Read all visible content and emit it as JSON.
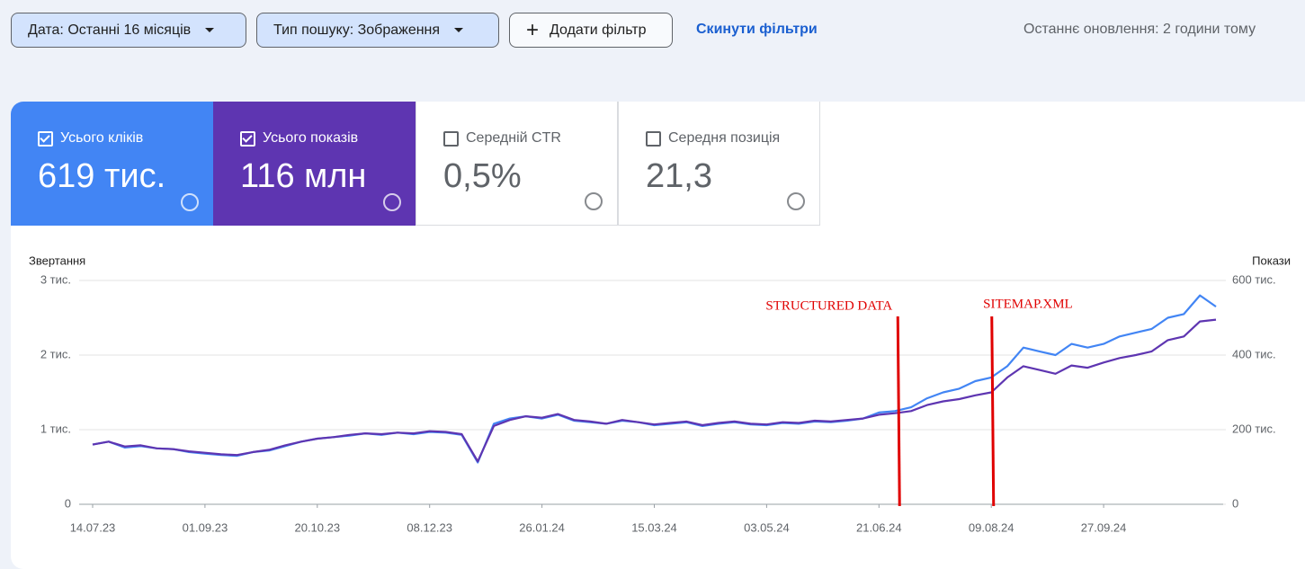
{
  "header": {
    "filters": [
      "Дата: Останні 16 місяців",
      "Тип пошуку: Зображення"
    ],
    "add_filter": "Додати фільтр",
    "reset": "Скинути фільтри",
    "last_update": "Останнє оновлення: 2 години тому"
  },
  "metrics": [
    {
      "label": "Усього кліків",
      "value": "619 тис.",
      "checked": true,
      "color": "#4285f4"
    },
    {
      "label": "Усього показів",
      "value": "116 млн",
      "checked": true,
      "color": "#5e35b1"
    },
    {
      "label": "Середній CTR",
      "value": "0,5%",
      "checked": false
    },
    {
      "label": "Середня позиція",
      "value": "21,3",
      "checked": false
    }
  ],
  "chart_data": {
    "type": "line",
    "y_label": "Звертання",
    "y2_label": "Покази",
    "x": [
      "14.07.23",
      "21.07.23",
      "28.07.23",
      "04.08.23",
      "11.08.23",
      "18.08.23",
      "25.08.23",
      "01.09.23",
      "08.09.23",
      "15.09.23",
      "22.09.23",
      "29.09.23",
      "06.10.23",
      "13.10.23",
      "20.10.23",
      "27.10.23",
      "03.11.23",
      "10.11.23",
      "17.11.23",
      "24.11.23",
      "01.12.23",
      "08.12.23",
      "15.12.23",
      "22.12.23",
      "29.12.23",
      "05.01.24",
      "12.01.24",
      "19.01.24",
      "26.01.24",
      "02.02.24",
      "09.02.24",
      "16.02.24",
      "23.02.24",
      "01.03.24",
      "08.03.24",
      "15.03.24",
      "22.03.24",
      "29.03.24",
      "05.04.24",
      "12.04.24",
      "19.04.24",
      "26.04.24",
      "03.05.24",
      "10.05.24",
      "17.05.24",
      "24.05.24",
      "31.05.24",
      "07.06.24",
      "14.06.24",
      "21.06.24",
      "28.06.24",
      "05.07.24",
      "12.07.24",
      "19.07.24",
      "26.07.24",
      "02.08.24",
      "09.08.24",
      "16.08.24",
      "23.08.24",
      "30.08.24",
      "06.09.24",
      "13.09.24",
      "20.09.24",
      "27.09.24",
      "04.10.24",
      "11.10.24",
      "18.10.24",
      "25.10.24",
      "01.11.24",
      "08.11.24",
      "15.11.24"
    ],
    "series": [
      {
        "name": "Усього кліків",
        "color": "#4285f4",
        "axis": "y",
        "values": [
          800,
          840,
          760,
          780,
          750,
          740,
          700,
          680,
          660,
          650,
          700,
          720,
          780,
          840,
          880,
          900,
          920,
          950,
          930,
          960,
          940,
          970,
          960,
          930,
          560,
          1080,
          1150,
          1180,
          1150,
          1200,
          1120,
          1100,
          1080,
          1120,
          1100,
          1060,
          1080,
          1100,
          1050,
          1080,
          1100,
          1070,
          1060,
          1090,
          1080,
          1110,
          1100,
          1120,
          1150,
          1230,
          1250,
          1300,
          1420,
          1500,
          1550,
          1650,
          1700,
          1850,
          2100,
          2050,
          2000,
          2150,
          2100,
          2150,
          2250,
          2300,
          2350,
          2500,
          2550,
          2800,
          2650
        ]
      },
      {
        "name": "Усього показів",
        "color": "#5e35b1",
        "axis": "y2",
        "values": [
          160000,
          168000,
          155000,
          158000,
          150000,
          148000,
          142000,
          138000,
          134000,
          132000,
          140000,
          146000,
          158000,
          168000,
          176000,
          180000,
          186000,
          190000,
          188000,
          192000,
          190000,
          196000,
          194000,
          188000,
          115000,
          210000,
          226000,
          236000,
          232000,
          242000,
          226000,
          222000,
          216000,
          226000,
          220000,
          214000,
          218000,
          222000,
          212000,
          218000,
          222000,
          216000,
          214000,
          220000,
          218000,
          224000,
          222000,
          226000,
          230000,
          240000,
          244000,
          250000,
          266000,
          276000,
          282000,
          292000,
          300000,
          340000,
          370000,
          360000,
          350000,
          372000,
          366000,
          380000,
          392000,
          400000,
          410000,
          440000,
          450000,
          490000,
          495000
        ]
      }
    ],
    "ylim": [
      0,
      3000
    ],
    "yticks": [
      0,
      {
        "value": 1000,
        "label": "1 тис."
      },
      {
        "value": 2000,
        "label": "2 тис."
      },
      {
        "value": 3000,
        "label": "3 тис."
      }
    ],
    "y2lim": [
      0,
      600000
    ],
    "y2ticks": [
      0,
      {
        "value": 200000,
        "label": "200 тис."
      },
      {
        "value": 400000,
        "label": "400 тис."
      },
      {
        "value": 600000,
        "label": "600 тис."
      }
    ],
    "xticks": [
      "14.07.23",
      "01.09.23",
      "20.10.23",
      "08.12.23",
      "26.01.24",
      "15.03.24",
      "03.05.24",
      "21.06.24",
      "09.08.24",
      "27.09.24"
    ],
    "grid": true,
    "annotations": [
      {
        "text": "STRUCTURED DATA",
        "x": "30.06.24",
        "color": "#e00000"
      },
      {
        "text": "SITEMAP.XML",
        "x": "10.08.24",
        "color": "#e00000"
      }
    ]
  }
}
